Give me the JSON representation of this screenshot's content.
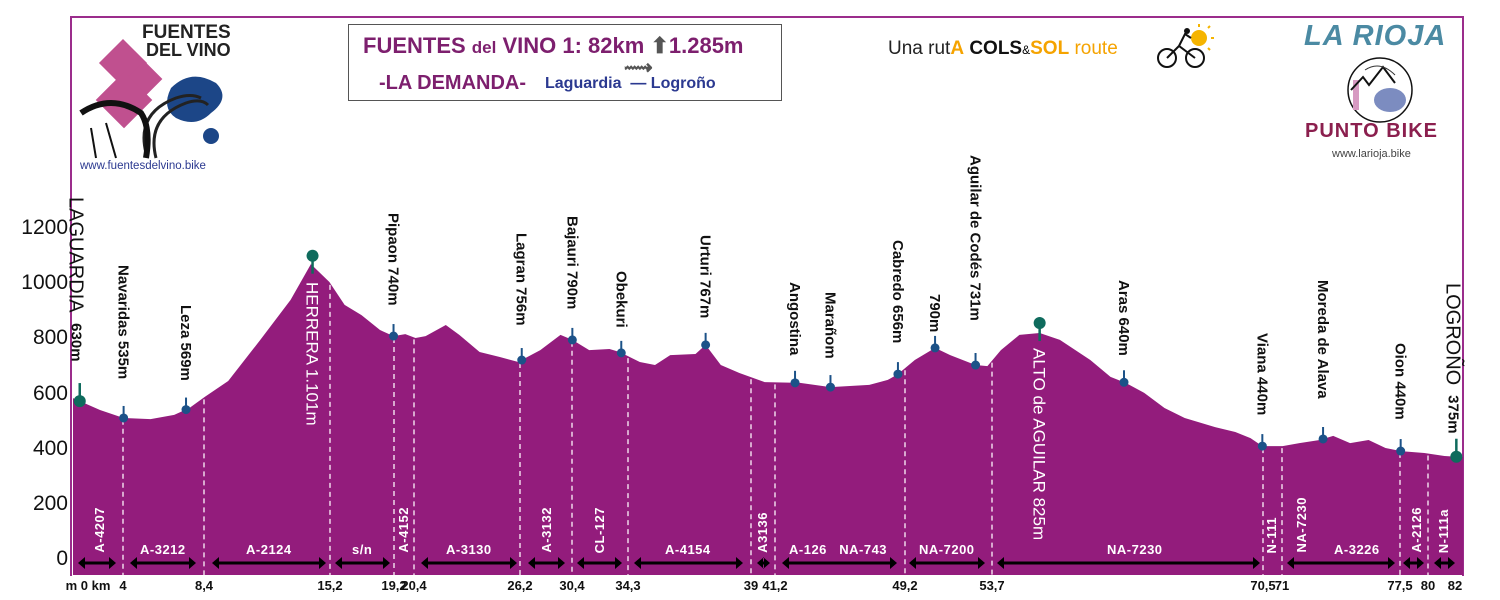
{
  "header": {
    "title_prefix": "FUENTES ",
    "title_del": "del",
    "title_rest": " VINO 1: 82km ",
    "title_climb": "1.285m",
    "subtitle": "-LA DEMANDA-",
    "route": "Laguardia  — Logroño",
    "tagline_a": "Una rut",
    "tagline_b": "A",
    "tagline_cols": "COLS",
    "tagline_amp": "&",
    "tagline_sol": "SOL",
    "tagline_route": " route",
    "distance_icon": "arrow-right-icon",
    "climb_icon": "arrow-up-icon"
  },
  "left_logo": {
    "line1": "FUENTES",
    "line2": "DEL VINO",
    "url": "www.fuentesdelvino.bike"
  },
  "right_logo": {
    "title": "LA RIOJA",
    "brand": "PUNTO BIKE",
    "url": "www.larioja.bike"
  },
  "colors": {
    "profile_fill": "#931c7c",
    "marker_minor": "#1c5288",
    "marker_major": "#0f6b5d",
    "frame": "#9b2d8c",
    "title": "#7d1f6e",
    "route_text": "#2b3990"
  },
  "chart_data": {
    "type": "area",
    "xlabel": "km",
    "ylabel": "m",
    "ylim": [
      0,
      1300
    ],
    "yticks": [
      "0",
      "200",
      "400",
      "600",
      "800",
      "1000",
      "1200"
    ],
    "xticks": [
      "0",
      "4",
      "8,4",
      "15,2",
      "19,2",
      "20,4",
      "26,2",
      "30,4",
      "34,3",
      "39",
      "41,2",
      "49,2",
      "53,7",
      "70,5",
      "71",
      "77,5",
      "80",
      "82"
    ],
    "grid": false,
    "profile": {
      "x": [
        0,
        1.6,
        3.0,
        4.6,
        6.0,
        6.9,
        7.8,
        9.2,
        11.1,
        12.9,
        14.1,
        15.2,
        16.1,
        17.1,
        18.2,
        19.0,
        19.7,
        20.3,
        20.9,
        22.1,
        22.9,
        24.1,
        25.3,
        26.4,
        26.6,
        27.7,
        28.9,
        29.6,
        30.6,
        31.8,
        32.4,
        33.6,
        34.5,
        35.4,
        36.9,
        37.5,
        38.4,
        39.5,
        41.0,
        43.1,
        44.9,
        47.2,
        48.3,
        48.9,
        49.9,
        51.1,
        52.0,
        53.5,
        54.2,
        55.0,
        56.1,
        57.3,
        58.5,
        60.3,
        61.5,
        62.4,
        63.5,
        64.7,
        65.9,
        67.7,
        68.9,
        69.8,
        70.5,
        71.7,
        72.7,
        73.9,
        74.7,
        75.7,
        76.8,
        77.8,
        78.7,
        80.1,
        81.3,
        82.4
      ],
      "y": [
        587,
        544,
        515,
        511,
        526,
        551,
        591,
        649,
        798,
        943,
        1073,
        1008,
        925,
        888,
        834,
        812,
        819,
        805,
        812,
        852,
        816,
        754,
        736,
        718,
        725,
        761,
        816,
        798,
        761,
        765,
        754,
        718,
        707,
        743,
        747,
        780,
        707,
        678,
        645,
        642,
        627,
        635,
        653,
        674,
        725,
        769,
        743,
        707,
        703,
        761,
        816,
        823,
        798,
        725,
        664,
        642,
        606,
        551,
        515,
        482,
        464,
        442,
        413,
        413,
        424,
        435,
        450,
        424,
        435,
        406,
        395,
        388,
        377,
        373
      ]
    },
    "markers": [
      {
        "name": "LAGUARDIA",
        "elevation": "630m",
        "km": 0.4,
        "type": "major-start"
      },
      {
        "name": "Navaridas 535m",
        "km": 3.0,
        "type": "minor"
      },
      {
        "name": "Leza 569m",
        "km": 6.7,
        "type": "minor"
      },
      {
        "name": "HERRERA 1.101m",
        "km": 14.2,
        "type": "major-summit"
      },
      {
        "name": "Pipaon 740m",
        "km": 19.0,
        "type": "minor"
      },
      {
        "name": "Lagran 756m",
        "km": 26.6,
        "type": "minor"
      },
      {
        "name": "Bajauri 790m",
        "km": 29.6,
        "type": "minor"
      },
      {
        "name": "Obekuri",
        "km": 32.5,
        "type": "minor"
      },
      {
        "name": "Urturi 767m",
        "km": 37.5,
        "type": "minor"
      },
      {
        "name": "Angostina",
        "km": 42.8,
        "type": "minor"
      },
      {
        "name": "Marañom",
        "km": 44.9,
        "type": "minor"
      },
      {
        "name": "Cabredo 656m",
        "km": 48.9,
        "type": "minor"
      },
      {
        "name": "790m",
        "km": 51.1,
        "type": "minor"
      },
      {
        "name": "Aguilar de Codés 731m",
        "km": 53.5,
        "type": "minor"
      },
      {
        "name": "ALTO de AGUILAR 825m",
        "km": 57.3,
        "type": "major-summit"
      },
      {
        "name": "Aras 640m",
        "km": 62.3,
        "type": "minor"
      },
      {
        "name": "Viana 440m",
        "km": 70.5,
        "type": "minor"
      },
      {
        "name": "Moreda de Alava",
        "km": 74.1,
        "type": "minor"
      },
      {
        "name": "Oion 440m",
        "km": 78.7,
        "type": "minor"
      },
      {
        "name": "LOGROÑO",
        "elevation": "375m",
        "km": 82.0,
        "type": "major-end"
      }
    ],
    "roads": [
      {
        "name": "A-4207",
        "vertical": true,
        "arrow": true
      },
      {
        "name": "A-3212",
        "vertical": false,
        "arrow": true
      },
      {
        "name": "A-2124",
        "vertical": false,
        "arrow": true
      },
      {
        "name": "s/n",
        "vertical": false,
        "arrow": true
      },
      {
        "name": "A-4152",
        "vertical": true,
        "arrow": false
      },
      {
        "name": "A-3130",
        "vertical": false,
        "arrow": true
      },
      {
        "name": "A-3132",
        "vertical": true,
        "arrow": true
      },
      {
        "name": "CL-127",
        "vertical": true,
        "arrow": true
      },
      {
        "name": "A-4154",
        "vertical": false,
        "arrow": true
      },
      {
        "name": "A3136",
        "vertical": true,
        "arrow": true
      },
      {
        "name": "A-126   NA-743",
        "vertical": false,
        "arrow": true
      },
      {
        "name": "NA-7200",
        "vertical": false,
        "arrow": true
      },
      {
        "name": "NA-7230",
        "vertical": false,
        "arrow": true
      },
      {
        "name": "N-111",
        "vertical": true,
        "arrow": false
      },
      {
        "name": "NA-7230",
        "vertical": true,
        "arrow": false
      },
      {
        "name": "A-3226",
        "vertical": false,
        "arrow": true
      },
      {
        "name": "A-2126",
        "vertical": true,
        "arrow": true
      },
      {
        "name": "N-111a",
        "vertical": true,
        "arrow": true
      }
    ]
  }
}
